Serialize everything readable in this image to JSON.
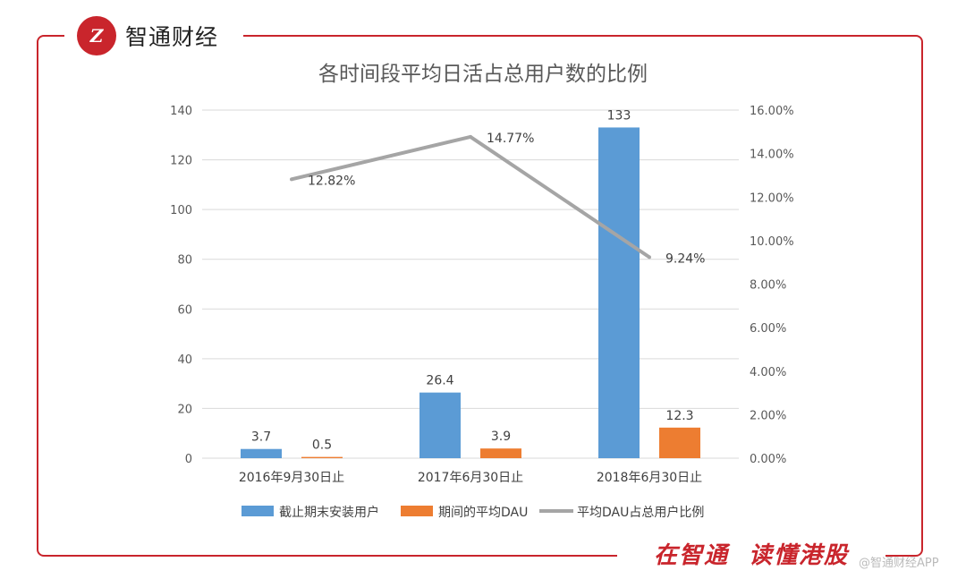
{
  "brand": {
    "logo_mark": "Z",
    "name": "智通财经",
    "slogan": "在智通  读懂港股",
    "watermark": "@智通财经APP",
    "accent_color": "#c9252c"
  },
  "chart_data": {
    "type": "bar",
    "title": "各时间段平均日活占总用户数的比例",
    "categories": [
      "2016年9月30日止",
      "2017年6月30日止",
      "2018年6月30日止"
    ],
    "series": [
      {
        "name": "截止期末安装用户",
        "type": "bar",
        "axis": "left",
        "color": "#5b9bd5",
        "values": [
          3.7,
          26.4,
          133
        ],
        "labels": [
          "3.7",
          "26.4",
          "133"
        ]
      },
      {
        "name": "期间的平均DAU",
        "type": "bar",
        "axis": "left",
        "color": "#ed7d31",
        "values": [
          0.5,
          3.9,
          12.3
        ],
        "labels": [
          "0.5",
          "3.9",
          "12.3"
        ]
      },
      {
        "name": "平均DAU占总用户比例",
        "type": "line",
        "axis": "right",
        "color": "#a5a5a5",
        "values": [
          12.82,
          14.77,
          9.24
        ],
        "labels": [
          "12.82%",
          "14.77%",
          "9.24%"
        ]
      }
    ],
    "y_left": {
      "min": 0,
      "max": 140,
      "ticks": [
        "0",
        "20",
        "40",
        "60",
        "80",
        "100",
        "120",
        "140"
      ]
    },
    "y_right": {
      "min": 0,
      "max": 16,
      "ticks": [
        "0.00%",
        "2.00%",
        "4.00%",
        "6.00%",
        "8.00%",
        "10.00%",
        "12.00%",
        "14.00%",
        "16.00%"
      ]
    },
    "grid": true,
    "legend_position": "bottom"
  }
}
